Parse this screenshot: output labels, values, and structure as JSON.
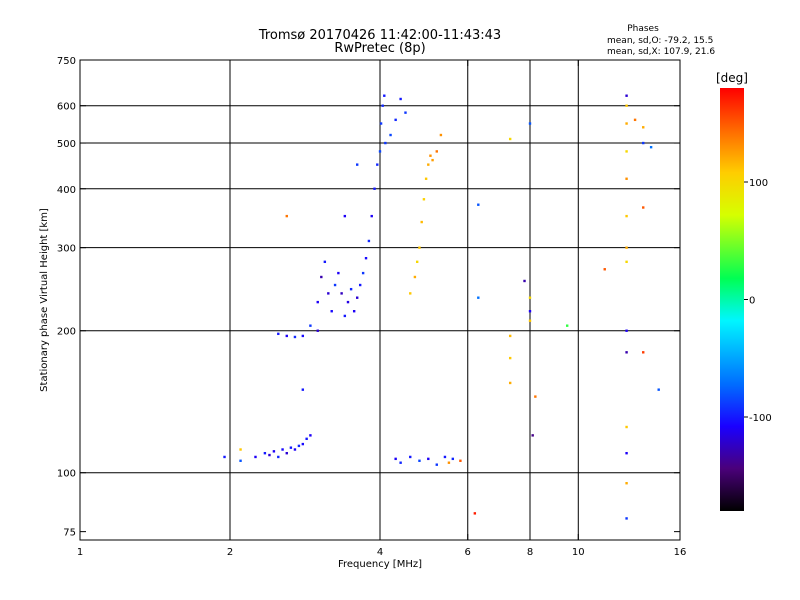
{
  "chart_data": {
    "type": "scatter",
    "title": "Tromsø 20170426 11:42:00-11:43:43",
    "subtitle": "RwPretec (8p)",
    "xlabel": "Frequency [MHz]",
    "ylabel": "Stationary phase Virtual Height [km]",
    "x_scale": "log",
    "y_scale": "log",
    "xlim": [
      1,
      16
    ],
    "ylim": [
      72,
      750
    ],
    "x_ticks": [
      1,
      2,
      4,
      6,
      8,
      10,
      16
    ],
    "y_ticks": [
      75,
      100,
      200,
      300,
      400,
      500,
      600,
      750
    ],
    "x_gridlines": [
      2,
      4,
      6,
      8,
      10
    ],
    "y_gridlines": [
      100,
      200,
      300,
      400,
      500,
      600
    ],
    "grid": true,
    "legend": {
      "title": "Phases",
      "lines": [
        "mean, sd,O: -79.2, 15.5",
        "mean, sd,X: 107.9, 21.6"
      ],
      "placement": "top-right"
    },
    "colorbar": {
      "label": "[deg]",
      "min": -180,
      "max": 180,
      "ticks": [
        100,
        0,
        -100
      ],
      "colormap": "rainbow"
    },
    "series": [
      {
        "name": "O",
        "points": [
          [
            1.95,
            108,
            -100
          ],
          [
            2.1,
            106,
            -80
          ],
          [
            2.25,
            108,
            -110
          ],
          [
            2.35,
            110,
            -100
          ],
          [
            2.4,
            109,
            -120
          ],
          [
            2.45,
            111,
            -110
          ],
          [
            2.5,
            108,
            -95
          ],
          [
            2.55,
            112,
            -105
          ],
          [
            2.6,
            110,
            -120
          ],
          [
            2.65,
            113,
            -100
          ],
          [
            2.7,
            112,
            -110
          ],
          [
            2.75,
            114,
            -95
          ],
          [
            2.8,
            115,
            -105
          ],
          [
            2.85,
            118,
            -100
          ],
          [
            2.9,
            120,
            -110
          ],
          [
            2.5,
            197,
            -100
          ],
          [
            2.6,
            195,
            -110
          ],
          [
            2.7,
            194,
            -95
          ],
          [
            2.8,
            195,
            -105
          ],
          [
            2.9,
            205,
            -90
          ],
          [
            3.0,
            200,
            -120
          ],
          [
            3.0,
            230,
            -110
          ],
          [
            3.05,
            260,
            -130
          ],
          [
            3.1,
            280,
            -100
          ],
          [
            3.15,
            240,
            -120
          ],
          [
            3.2,
            220,
            -105
          ],
          [
            3.25,
            250,
            -90
          ],
          [
            3.3,
            265,
            -110
          ],
          [
            3.35,
            240,
            -125
          ],
          [
            3.4,
            215,
            -100
          ],
          [
            3.45,
            230,
            -115
          ],
          [
            3.5,
            245,
            -95
          ],
          [
            3.55,
            220,
            -110
          ],
          [
            3.6,
            235,
            -120
          ],
          [
            3.65,
            250,
            -100
          ],
          [
            3.7,
            265,
            -90
          ],
          [
            3.75,
            285,
            -105
          ],
          [
            3.8,
            310,
            -95
          ],
          [
            3.85,
            350,
            -110
          ],
          [
            3.9,
            400,
            -100
          ],
          [
            3.95,
            450,
            -95
          ],
          [
            4.0,
            480,
            -85
          ],
          [
            4.02,
            550,
            -90
          ],
          [
            4.05,
            600,
            -95
          ],
          [
            4.08,
            630,
            -100
          ],
          [
            4.1,
            500,
            -90
          ],
          [
            4.2,
            520,
            -85
          ],
          [
            4.3,
            560,
            -95
          ],
          [
            4.4,
            620,
            -100
          ],
          [
            4.5,
            580,
            -90
          ],
          [
            4.3,
            107,
            -110
          ],
          [
            4.4,
            105,
            -95
          ],
          [
            4.6,
            108,
            -100
          ],
          [
            4.8,
            106,
            -85
          ],
          [
            5.0,
            107,
            -110
          ],
          [
            5.2,
            104,
            -90
          ],
          [
            5.4,
            108,
            -100
          ],
          [
            5.6,
            107,
            -95
          ],
          [
            3.6,
            450,
            -90
          ],
          [
            3.4,
            350,
            -110
          ],
          [
            2.8,
            150,
            -100
          ],
          [
            8.0,
            550,
            -80
          ],
          [
            7.8,
            255,
            -130
          ],
          [
            8.1,
            120,
            -140
          ],
          [
            8.0,
            220,
            -110
          ],
          [
            6.3,
            370,
            -80
          ],
          [
            6.3,
            235,
            -70
          ],
          [
            12.5,
            630,
            -120
          ],
          [
            12.5,
            200,
            -110
          ],
          [
            12.5,
            180,
            -130
          ],
          [
            12.5,
            110,
            -110
          ],
          [
            12.5,
            80,
            -90
          ],
          [
            14.0,
            490,
            -70
          ],
          [
            14.5,
            150,
            -80
          ],
          [
            13.5,
            500,
            -90
          ]
        ]
      },
      {
        "name": "X",
        "points": [
          [
            2.1,
            112,
            110
          ],
          [
            2.6,
            350,
            140
          ],
          [
            4.6,
            240,
            110
          ],
          [
            4.7,
            260,
            120
          ],
          [
            4.75,
            280,
            100
          ],
          [
            4.8,
            300,
            110
          ],
          [
            4.85,
            340,
            115
          ],
          [
            4.9,
            380,
            105
          ],
          [
            4.95,
            420,
            110
          ],
          [
            5.0,
            450,
            120
          ],
          [
            5.05,
            470,
            130
          ],
          [
            5.1,
            460,
            125
          ],
          [
            5.3,
            520,
            130
          ],
          [
            5.2,
            480,
            140
          ],
          [
            5.5,
            105,
            130
          ],
          [
            5.8,
            106,
            150
          ],
          [
            6.2,
            82,
            170
          ],
          [
            7.3,
            510,
            100
          ],
          [
            7.3,
            195,
            115
          ],
          [
            7.3,
            175,
            110
          ],
          [
            7.3,
            155,
            120
          ],
          [
            8.0,
            235,
            100
          ],
          [
            8.0,
            210,
            110
          ],
          [
            8.2,
            145,
            140
          ],
          [
            9.5,
            205,
            30
          ],
          [
            11.3,
            270,
            150
          ],
          [
            12.5,
            600,
            110
          ],
          [
            12.5,
            550,
            120
          ],
          [
            12.5,
            480,
            100
          ],
          [
            12.5,
            420,
            130
          ],
          [
            12.5,
            350,
            110
          ],
          [
            12.5,
            300,
            120
          ],
          [
            12.5,
            280,
            100
          ],
          [
            12.5,
            125,
            110
          ],
          [
            12.5,
            95,
            120
          ],
          [
            13.5,
            365,
            150
          ],
          [
            13.5,
            180,
            160
          ],
          [
            13.0,
            560,
            140
          ],
          [
            13.5,
            540,
            120
          ]
        ]
      }
    ]
  }
}
